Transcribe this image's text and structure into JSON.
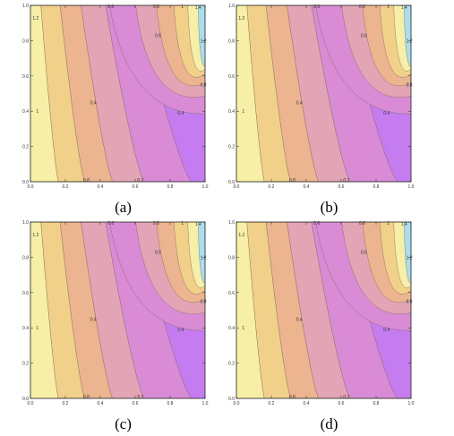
{
  "figure": {
    "panels": [
      {
        "caption": "(a)"
      },
      {
        "caption": "(b)"
      },
      {
        "caption": "(c)"
      },
      {
        "caption": "(d)"
      }
    ]
  },
  "chart_data": [
    {
      "type": "contour",
      "caption": "(a)",
      "xlim": [
        0,
        1
      ],
      "ylim": [
        0,
        1
      ],
      "xticks": [
        "0.0",
        "0.2",
        "0.4",
        "0.6",
        "0.8",
        "1.0"
      ],
      "yticks": [
        "0.0",
        "0.2",
        "0.4",
        "0.6",
        "0.8",
        "1.0"
      ],
      "contour_labels": [
        "1.2",
        "1",
        "0.8",
        "0.6",
        "0.4",
        "0.2",
        "0.6",
        "0.4",
        "1.2",
        "0.8",
        "0.6",
        "1",
        "1.4"
      ],
      "colors": [
        "#f7efa6",
        "#f1d089",
        "#ecb48f",
        "#e3a4b6",
        "#d98bd6",
        "#c57cf0",
        "#b36bf2",
        "#a7dff0",
        "#86c8ea"
      ]
    },
    {
      "type": "contour",
      "caption": "(b)",
      "xlim": [
        0,
        1
      ],
      "ylim": [
        0,
        1
      ],
      "xticks": [
        "0.0",
        "0.2",
        "0.4",
        "0.6",
        "0.8",
        "1.0"
      ],
      "yticks": [
        "0.0",
        "0.2",
        "0.4",
        "0.6",
        "0.8",
        "1.0"
      ],
      "contour_labels": [
        "1.2",
        "1",
        "0.8",
        "0.6",
        "0.4",
        "0.2",
        "0.6",
        "0.4",
        "1.2",
        "0.8",
        "0.6",
        "1",
        "1.4"
      ],
      "colors": [
        "#f7efa6",
        "#f1d089",
        "#ecb48f",
        "#e3a4b6",
        "#d98bd6",
        "#c57cf0",
        "#b36bf2",
        "#a7dff0",
        "#86c8ea"
      ]
    },
    {
      "type": "contour",
      "caption": "(c)",
      "xlim": [
        0,
        1
      ],
      "ylim": [
        0,
        1
      ],
      "xticks": [
        "0.0",
        "0.2",
        "0.4",
        "0.6",
        "0.8",
        "1.0"
      ],
      "yticks": [
        "0.0",
        "0.2",
        "0.4",
        "0.6",
        "0.8",
        "1.0"
      ],
      "contour_labels": [
        "1.2",
        "1",
        "0.8",
        "0.6",
        "0.4",
        "0.2",
        "0.6",
        "0.4",
        "1.2",
        "0.8",
        "0.6",
        "1",
        "1.4"
      ],
      "colors": [
        "#f7efa6",
        "#f1d089",
        "#ecb48f",
        "#e3a4b6",
        "#d98bd6",
        "#c57cf0",
        "#b36bf2",
        "#a7dff0",
        "#86c8ea"
      ]
    },
    {
      "type": "contour",
      "caption": "(d)",
      "xlim": [
        0,
        1
      ],
      "ylim": [
        0,
        1
      ],
      "xticks": [
        "0.0",
        "0.2",
        "0.4",
        "0.6",
        "0.8",
        "1.0"
      ],
      "yticks": [
        "0.0",
        "0.2",
        "0.4",
        "0.6",
        "0.8",
        "1.0"
      ],
      "contour_labels": [
        "1.2",
        "1",
        "0.8",
        "0.6",
        "0.4",
        "0.2",
        "0.6",
        "0.4",
        "1.2",
        "0.8",
        "0.6",
        "1",
        "1.4"
      ],
      "colors": [
        "#f7efa6",
        "#f1d089",
        "#ecb48f",
        "#e3a4b6",
        "#d98bd6",
        "#c57cf0",
        "#b36bf2",
        "#a7dff0",
        "#86c8ea"
      ]
    }
  ]
}
